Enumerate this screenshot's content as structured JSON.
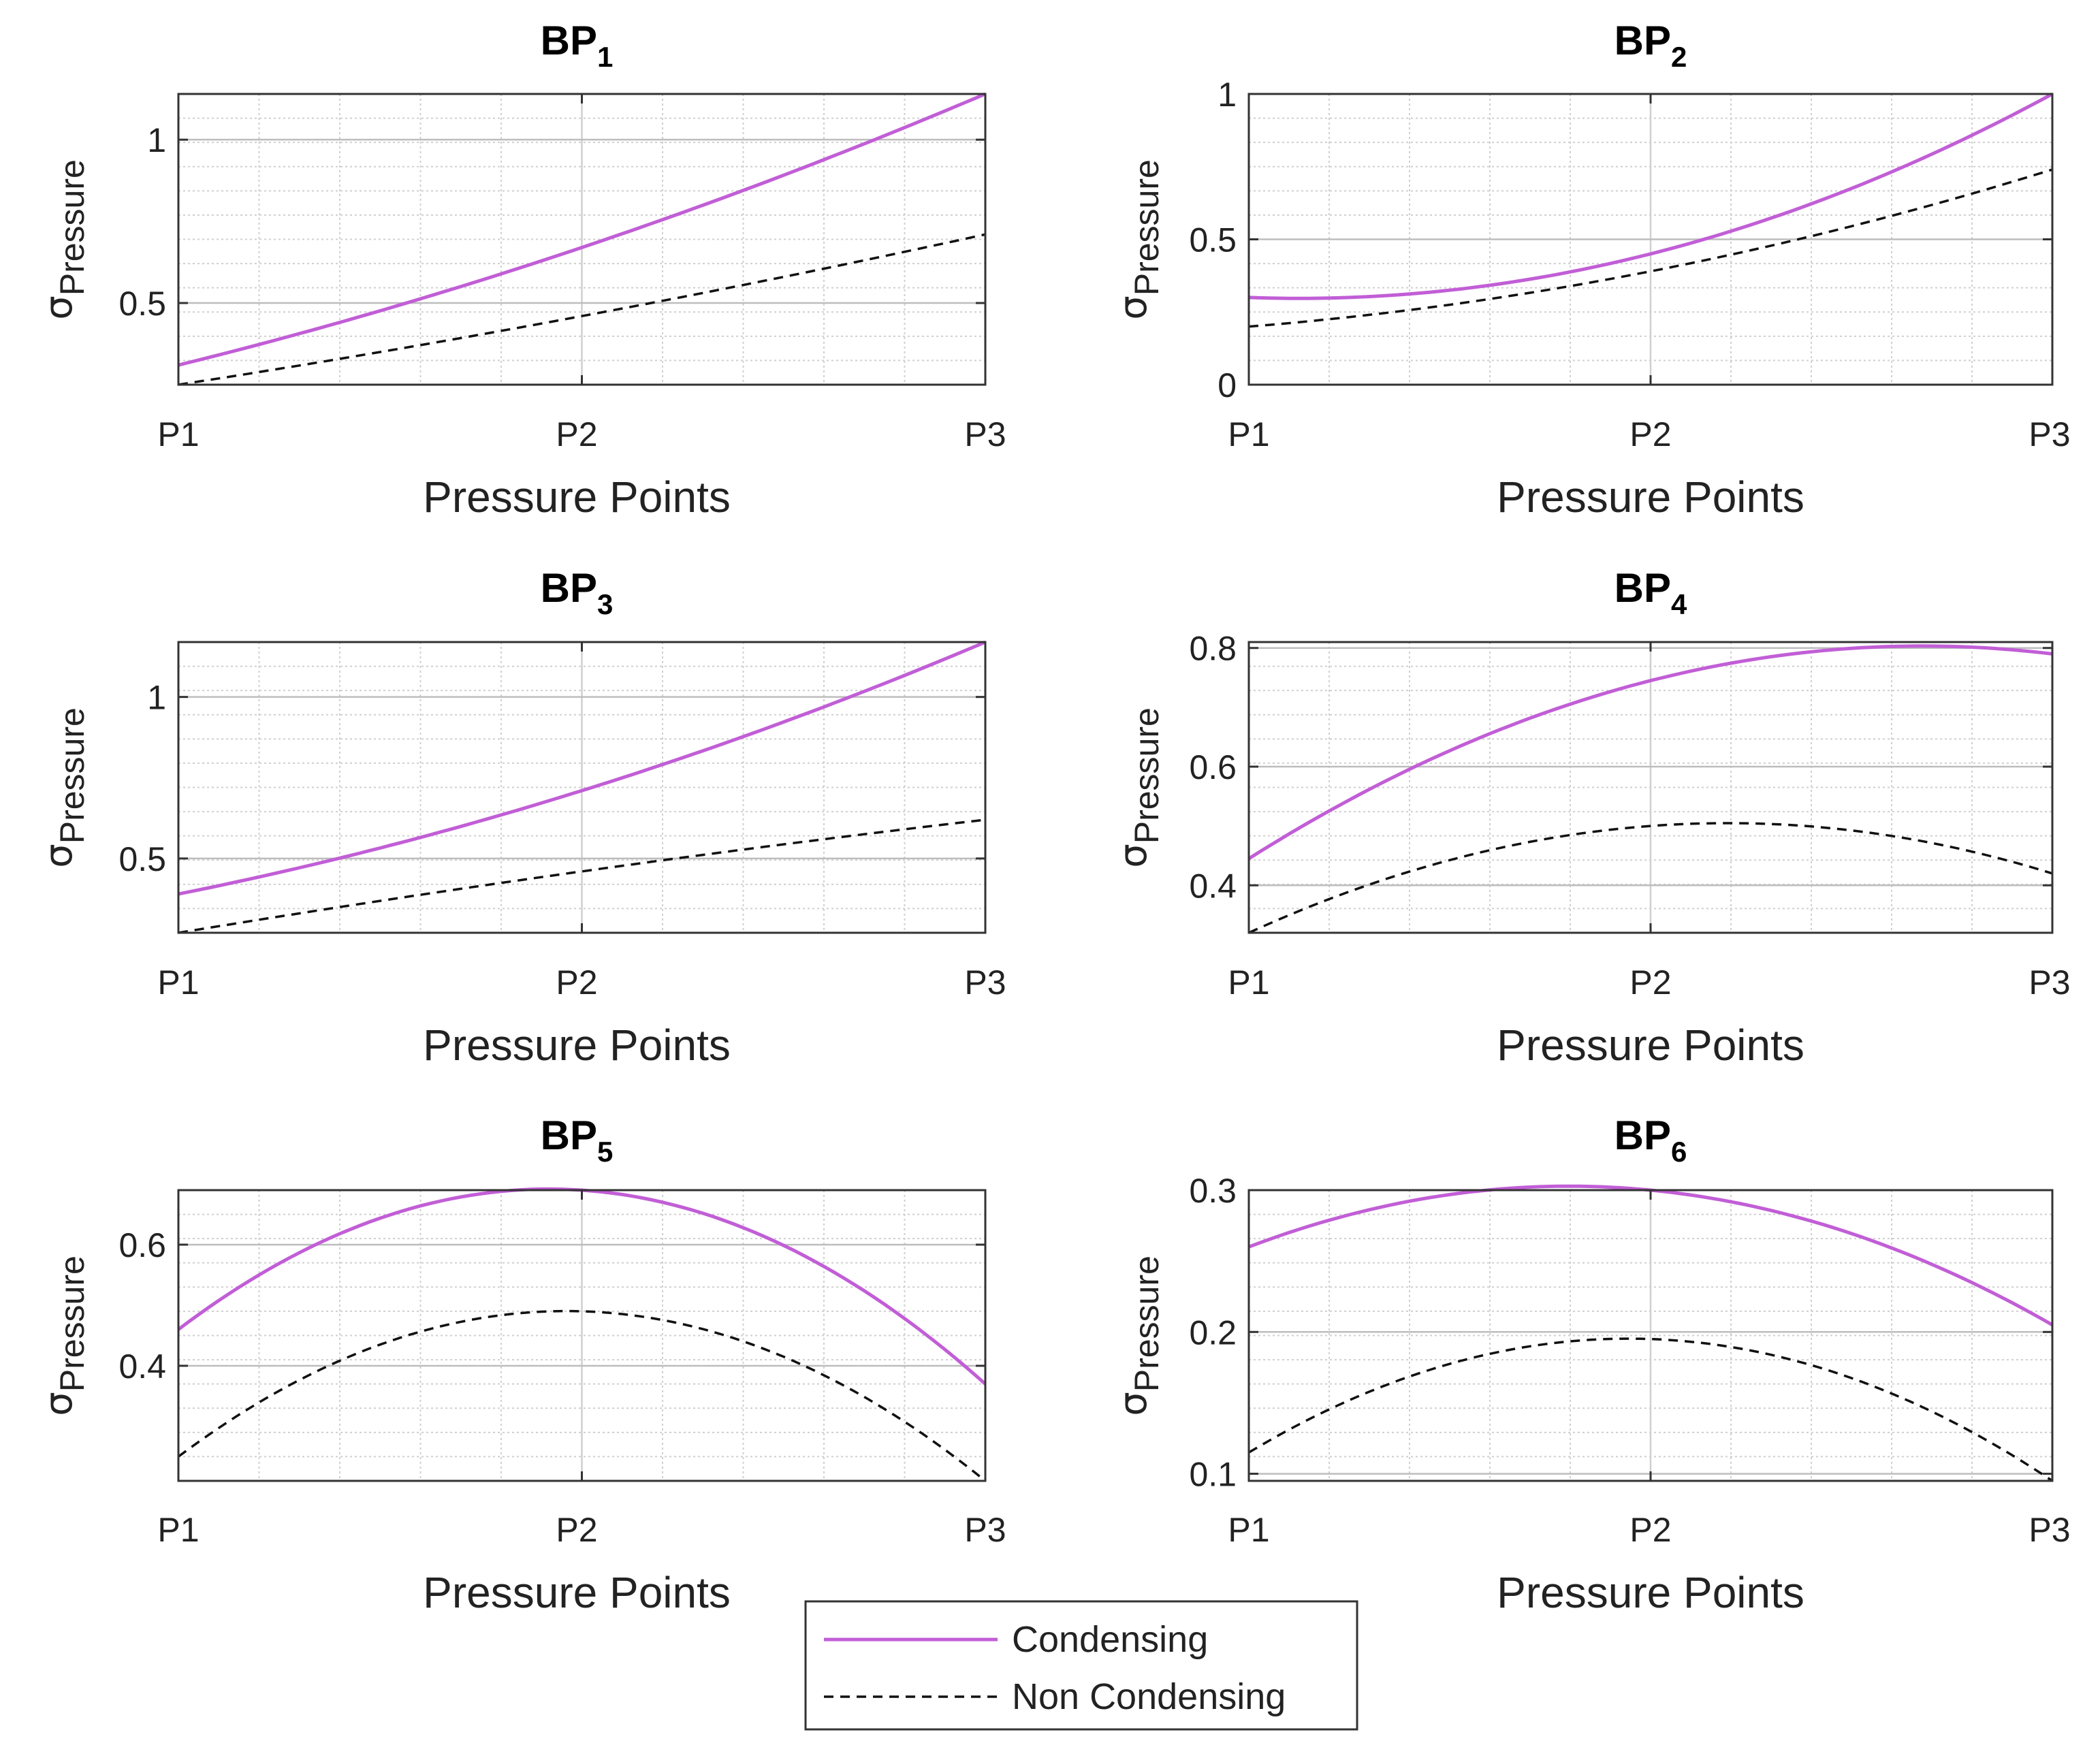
{
  "colors": {
    "condensing": "#c15ed6",
    "non_condensing": "#111111",
    "grid": "#cfcfcf",
    "axis": "#333333"
  },
  "legend": {
    "condensing_label": "Condensing",
    "non_condensing_label": "Non Condensing"
  },
  "chart_data": [
    {
      "type": "line",
      "title": "BP",
      "title_sub": "1",
      "xlabel": "Pressure Points",
      "ylabel": "σ",
      "ylabel_sub": "Pressure",
      "categories": [
        "P1",
        "P2",
        "P3"
      ],
      "ylim": [
        0.25,
        1.14
      ],
      "yticks": [
        0.5,
        1
      ],
      "ytick_labels": [
        "0.5",
        "1"
      ],
      "series": [
        {
          "name": "Condensing",
          "values": [
            0.31,
            0.67,
            1.14
          ]
        },
        {
          "name": "Non Condensing",
          "values": [
            0.25,
            0.46,
            0.71
          ]
        }
      ]
    },
    {
      "type": "line",
      "title": "BP",
      "title_sub": "2",
      "xlabel": "Pressure Points",
      "ylabel": "σ",
      "ylabel_sub": "Pressure",
      "categories": [
        "P1",
        "P2",
        "P3"
      ],
      "ylim": [
        0,
        1
      ],
      "yticks": [
        0,
        0.5,
        1
      ],
      "ytick_labels": [
        "0",
        "0.5",
        "1"
      ],
      "series": [
        {
          "name": "Condensing",
          "values": [
            0.3,
            0.45,
            1.0
          ]
        },
        {
          "name": "Non Condensing",
          "values": [
            0.2,
            0.39,
            0.74
          ]
        }
      ]
    },
    {
      "type": "line",
      "title": "BP",
      "title_sub": "3",
      "xlabel": "Pressure Points",
      "ylabel": "σ",
      "ylabel_sub": "Pressure",
      "categories": [
        "P1",
        "P2",
        "P3"
      ],
      "ylim": [
        0.27,
        1.17
      ],
      "yticks": [
        0.5,
        1
      ],
      "ytick_labels": [
        "0.5",
        "1"
      ],
      "series": [
        {
          "name": "Condensing",
          "values": [
            0.39,
            0.71,
            1.17
          ]
        },
        {
          "name": "Non Condensing",
          "values": [
            0.27,
            0.46,
            0.62
          ]
        }
      ]
    },
    {
      "type": "line",
      "title": "BP",
      "title_sub": "4",
      "xlabel": "Pressure Points",
      "ylabel": "σ",
      "ylabel_sub": "Pressure",
      "categories": [
        "P1",
        "P2",
        "P3"
      ],
      "ylim": [
        0.32,
        0.81
      ],
      "yticks": [
        0.4,
        0.6,
        0.8
      ],
      "ytick_labels": [
        "0.4",
        "0.6",
        "0.8"
      ],
      "series": [
        {
          "name": "Condensing",
          "values": [
            0.445,
            0.745,
            0.79
          ]
        },
        {
          "name": "Non Condensing",
          "values": [
            0.32,
            0.5,
            0.42
          ]
        }
      ]
    },
    {
      "type": "line",
      "title": "BP",
      "title_sub": "5",
      "xlabel": "Pressure Points",
      "ylabel": "σ",
      "ylabel_sub": "Pressure",
      "categories": [
        "P1",
        "P2",
        "P3"
      ],
      "ylim": [
        0.21,
        0.69
      ],
      "yticks": [
        0.4,
        0.6
      ],
      "ytick_labels": [
        "0.4",
        "0.6"
      ],
      "series": [
        {
          "name": "Condensing",
          "values": [
            0.46,
            0.69,
            0.37
          ]
        },
        {
          "name": "Non Condensing",
          "values": [
            0.25,
            0.49,
            0.21
          ]
        }
      ]
    },
    {
      "type": "line",
      "title": "BP",
      "title_sub": "6",
      "xlabel": "Pressure Points",
      "ylabel": "σ",
      "ylabel_sub": "Pressure",
      "categories": [
        "P1",
        "P2",
        "P3"
      ],
      "ylim": [
        0.095,
        0.3
      ],
      "yticks": [
        0.1,
        0.2,
        0.3
      ],
      "ytick_labels": [
        "0.1",
        "0.2",
        "0.3"
      ],
      "series": [
        {
          "name": "Condensing",
          "values": [
            0.26,
            0.3,
            0.205
          ]
        },
        {
          "name": "Non Condensing",
          "values": [
            0.115,
            0.195,
            0.095
          ]
        }
      ]
    }
  ]
}
